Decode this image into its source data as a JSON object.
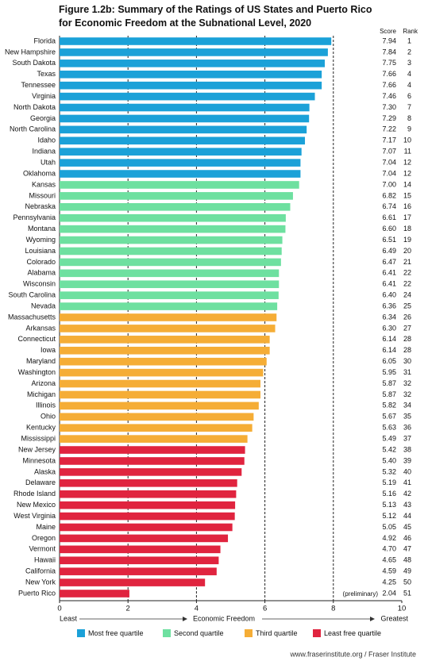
{
  "chart_data": {
    "type": "bar",
    "orientation": "horizontal",
    "title": [
      "Figure 1.2b: Summary of the Ratings of US States and Puerto Rico",
      "for Economic Freedom at the Subnational Level, 2020"
    ],
    "column_headers": [
      "Score",
      "Rank"
    ],
    "categories": [
      "Florida",
      "New Hampshire",
      "South Dakota",
      "Texas",
      "Tennessee",
      "Virginia",
      "North Dakota",
      "Georgia",
      "North Carolina",
      "Idaho",
      "Indiana",
      "Utah",
      "Oklahoma",
      "Kansas",
      "Missouri",
      "Nebraska",
      "Pennsylvania",
      "Montana",
      "Wyoming",
      "Louisiana",
      "Colorado",
      "Alabama",
      "Wisconsin",
      "South Carolina",
      "Nevada",
      "Massachusetts",
      "Arkansas",
      "Connecticut",
      "Iowa",
      "Maryland",
      "Washington",
      "Arizona",
      "Michigan",
      "Illinois",
      "Ohio",
      "Kentucky",
      "Mississippi",
      "New Jersey",
      "Minnesota",
      "Alaska",
      "Delaware",
      "Rhode Island",
      "New Mexico",
      "West Virginia",
      "Maine",
      "Oregon",
      "Vermont",
      "Hawaii",
      "California",
      "New York",
      "Puerto Rico"
    ],
    "ranks": [
      1,
      2,
      3,
      4,
      4,
      6,
      7,
      8,
      9,
      10,
      11,
      12,
      12,
      14,
      15,
      16,
      17,
      18,
      19,
      20,
      21,
      22,
      22,
      24,
      25,
      26,
      27,
      28,
      28,
      30,
      31,
      32,
      32,
      34,
      35,
      36,
      37,
      38,
      39,
      40,
      41,
      42,
      43,
      44,
      45,
      46,
      47,
      48,
      49,
      50,
      51
    ],
    "series": [
      {
        "name": "Most free quartile",
        "color": "#1ba1d8",
        "values": [
          7.94,
          7.84,
          7.75,
          7.66,
          7.66,
          7.46,
          7.3,
          7.29,
          7.22,
          7.17,
          7.07,
          7.04,
          7.04,
          null,
          null,
          null,
          null,
          null,
          null,
          null,
          null,
          null,
          null,
          null,
          null,
          null,
          null,
          null,
          null,
          null,
          null,
          null,
          null,
          null,
          null,
          null,
          null,
          null,
          null,
          null,
          null,
          null,
          null,
          null,
          null,
          null,
          null,
          null,
          null,
          null,
          null
        ],
        "value_labels": [
          "7.94",
          "7.84",
          "7.75",
          "7.66",
          "7.66",
          "7.46",
          "7.30",
          "7.29",
          "7.22",
          "7.17",
          "7.07",
          "7.04",
          "7.04",
          null,
          null,
          null,
          null,
          null,
          null,
          null,
          null,
          null,
          null,
          null,
          null,
          null,
          null,
          null,
          null,
          null,
          null,
          null,
          null,
          null,
          null,
          null,
          null,
          null,
          null,
          null,
          null,
          null,
          null,
          null,
          null,
          null,
          null,
          null,
          null,
          null,
          null
        ]
      },
      {
        "name": "Second quartile",
        "color": "#6ee0a0",
        "values": [
          null,
          null,
          null,
          null,
          null,
          null,
          null,
          null,
          null,
          null,
          null,
          null,
          null,
          7.0,
          6.82,
          6.74,
          6.61,
          6.6,
          6.51,
          6.49,
          6.47,
          6.41,
          6.41,
          6.4,
          6.36,
          null,
          null,
          null,
          null,
          null,
          null,
          null,
          null,
          null,
          null,
          null,
          null,
          null,
          null,
          null,
          null,
          null,
          null,
          null,
          null,
          null,
          null,
          null,
          null,
          null,
          null
        ],
        "value_labels": [
          null,
          null,
          null,
          null,
          null,
          null,
          null,
          null,
          null,
          null,
          null,
          null,
          null,
          "7.00",
          "6.82",
          "6.74",
          "6.61",
          "6.60",
          "6.51",
          "6.49",
          "6.47",
          "6.41",
          "6.41",
          "6.40",
          "6.36",
          null,
          null,
          null,
          null,
          null,
          null,
          null,
          null,
          null,
          null,
          null,
          null,
          null,
          null,
          null,
          null,
          null,
          null,
          null,
          null,
          null,
          null,
          null,
          null,
          null,
          null
        ]
      },
      {
        "name": "Third quartile",
        "color": "#f5ad36",
        "values": [
          null,
          null,
          null,
          null,
          null,
          null,
          null,
          null,
          null,
          null,
          null,
          null,
          null,
          null,
          null,
          null,
          null,
          null,
          null,
          null,
          null,
          null,
          null,
          null,
          null,
          6.34,
          6.3,
          6.14,
          6.14,
          6.05,
          5.95,
          5.87,
          5.87,
          5.82,
          5.67,
          5.63,
          5.49,
          null,
          null,
          null,
          null,
          null,
          null,
          null,
          null,
          null,
          null,
          null,
          null,
          null,
          null
        ],
        "value_labels": [
          null,
          null,
          null,
          null,
          null,
          null,
          null,
          null,
          null,
          null,
          null,
          null,
          null,
          null,
          null,
          null,
          null,
          null,
          null,
          null,
          null,
          null,
          null,
          null,
          null,
          "6.34",
          "6.30",
          "6.14",
          "6.14",
          "6.05",
          "5.95",
          "5.87",
          "5.87",
          "5.82",
          "5.67",
          "5.63",
          "5.49",
          null,
          null,
          null,
          null,
          null,
          null,
          null,
          null,
          null,
          null,
          null,
          null,
          null,
          null
        ]
      },
      {
        "name": "Least free quartile",
        "color": "#e0243f",
        "values": [
          null,
          null,
          null,
          null,
          null,
          null,
          null,
          null,
          null,
          null,
          null,
          null,
          null,
          null,
          null,
          null,
          null,
          null,
          null,
          null,
          null,
          null,
          null,
          null,
          null,
          null,
          null,
          null,
          null,
          null,
          null,
          null,
          null,
          null,
          null,
          null,
          null,
          5.42,
          5.4,
          5.32,
          5.19,
          5.16,
          5.13,
          5.12,
          5.05,
          4.92,
          4.7,
          4.65,
          4.59,
          4.25,
          2.04
        ],
        "value_labels": [
          null,
          null,
          null,
          null,
          null,
          null,
          null,
          null,
          null,
          null,
          null,
          null,
          null,
          null,
          null,
          null,
          null,
          null,
          null,
          null,
          null,
          null,
          null,
          null,
          null,
          null,
          null,
          null,
          null,
          null,
          null,
          null,
          null,
          null,
          null,
          null,
          null,
          "5.42",
          "5.40",
          "5.32",
          "5.19",
          "5.16",
          "5.13",
          "5.12",
          "5.05",
          "4.92",
          "4.70",
          "4.65",
          "4.59",
          "4.25",
          "2.04"
        ]
      }
    ],
    "annotation": "(preliminary)",
    "xlim": [
      0,
      10
    ],
    "xticks": [
      0,
      2,
      4,
      6,
      8,
      10
    ],
    "grid": true,
    "x_label": "Economic Freedom",
    "x_label_left": "Least",
    "x_label_right": "Greatest",
    "legend": "bottom",
    "source": "www.fraserinstitute.org  /  Fraser Institute"
  }
}
